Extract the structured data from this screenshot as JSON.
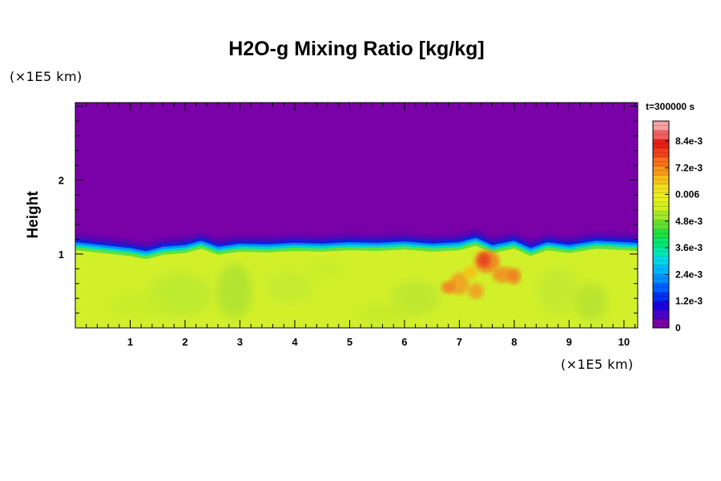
{
  "chart_data": {
    "type": "heatmap",
    "title": "H2O-g Mixing Ratio [kg/kg]",
    "ylabel": "Height",
    "x_unit_label": "(×1E5 km)",
    "y_unit_label": "(×1E5 km)",
    "time_label": "t=300000 s",
    "xlim": [
      0,
      10.25
    ],
    "ylim": [
      0,
      3.05
    ],
    "x_ticks": [
      1,
      2,
      3,
      4,
      5,
      6,
      7,
      8,
      9,
      10
    ],
    "y_ticks": [
      1,
      2
    ],
    "moist_layer_top": [
      [
        0.0,
        1.16
      ],
      [
        0.5,
        1.12
      ],
      [
        1.0,
        1.08
      ],
      [
        1.3,
        1.04
      ],
      [
        1.6,
        1.1
      ],
      [
        2.0,
        1.12
      ],
      [
        2.3,
        1.18
      ],
      [
        2.6,
        1.1
      ],
      [
        3.0,
        1.14
      ],
      [
        3.5,
        1.13
      ],
      [
        4.0,
        1.15
      ],
      [
        4.5,
        1.14
      ],
      [
        5.0,
        1.16
      ],
      [
        5.5,
        1.15
      ],
      [
        6.0,
        1.17
      ],
      [
        6.5,
        1.14
      ],
      [
        7.0,
        1.16
      ],
      [
        7.3,
        1.22
      ],
      [
        7.6,
        1.12
      ],
      [
        8.0,
        1.18
      ],
      [
        8.3,
        1.08
      ],
      [
        8.6,
        1.16
      ],
      [
        9.0,
        1.12
      ],
      [
        9.5,
        1.18
      ],
      [
        10.0,
        1.16
      ],
      [
        10.25,
        1.15
      ]
    ],
    "colorbar": {
      "tick_labels": [
        "0",
        "1.2e-3",
        "2.4e-3",
        "3.6e-3",
        "4.8e-3",
        "0.006",
        "7.2e-3",
        "8.4e-3"
      ],
      "tick_values": [
        0,
        0.0012,
        0.0024,
        0.0036,
        0.0048,
        0.006,
        0.0072,
        0.0084
      ],
      "range": [
        0,
        0.0093
      ],
      "colors": [
        "#7a00a8",
        "#4b00c8",
        "#1a00e0",
        "#0030f0",
        "#0060ff",
        "#0090ff",
        "#00b8ff",
        "#00d8e8",
        "#00e8b0",
        "#00e870",
        "#20e040",
        "#60e030",
        "#a0e828",
        "#d0f020",
        "#e8f020",
        "#f0e020",
        "#f8c018",
        "#f89818",
        "#f87018",
        "#f04018",
        "#e82018",
        "#f06060",
        "#f8a0a0"
      ]
    },
    "colors": {
      "dry_layer": "#7a00a8",
      "moist_layer": "#d2f02a",
      "interface": "#1020d8",
      "max_region": "#f07020"
    }
  }
}
